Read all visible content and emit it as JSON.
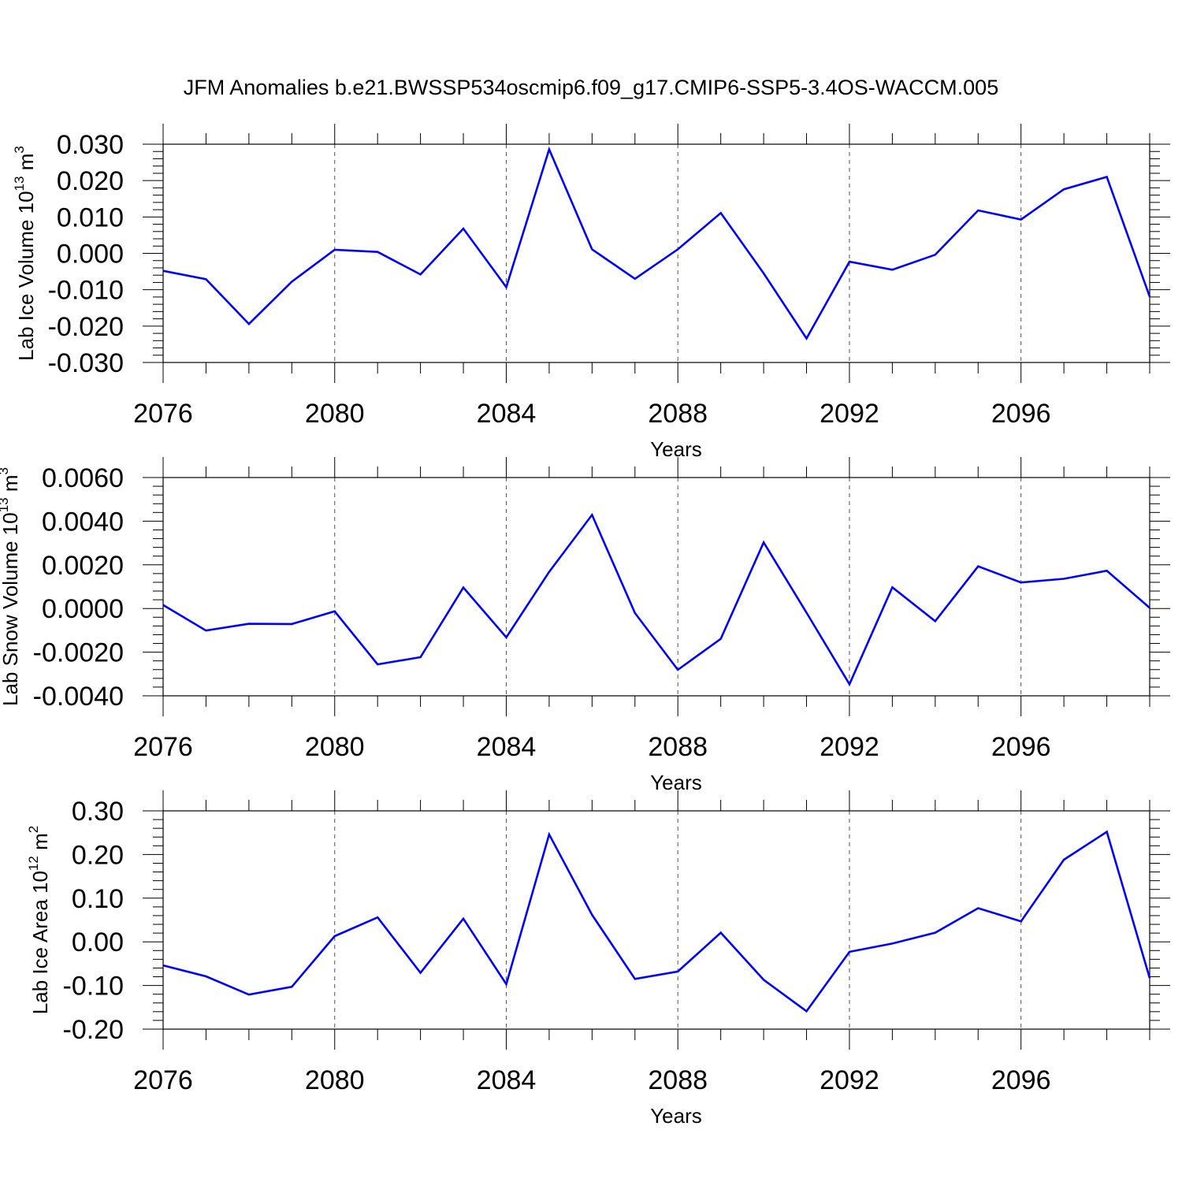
{
  "title": "JFM Anomalies b.e21.BWSSP534oscmip6.f09_g17.CMIP6-SSP5-3.4OS-WACCM.005",
  "colors": {
    "line": "#0000ff",
    "axis": "#000000",
    "grid": "#555555"
  },
  "chart_data": [
    {
      "type": "line",
      "title": "",
      "xlabel": "Years",
      "ylabel": "Lab Ice Volume 10",
      "ylabel_sup": "13",
      "ylabel_unit": " m",
      "ylabel_unit_sup": "3",
      "xlim": [
        2076,
        2099
      ],
      "ylim": [
        -0.03,
        0.03
      ],
      "xticks": [
        2076,
        2080,
        2084,
        2088,
        2092,
        2096
      ],
      "xtick_labels": [
        "2076",
        "2080",
        "2084",
        "2088",
        "2092",
        "2096"
      ],
      "yticks": [
        -0.03,
        -0.02,
        -0.01,
        0.0,
        0.01,
        0.02,
        0.03
      ],
      "ytick_labels": [
        "-0.030",
        "-0.020",
        "-0.010",
        "0.000",
        "0.010",
        "0.020",
        "0.030"
      ],
      "grid": "vertical dashed at major x ticks",
      "series": [
        {
          "x": [
            2076,
            2077,
            2078,
            2079,
            2080,
            2081,
            2082,
            2083,
            2084,
            2085,
            2086,
            2087,
            2088,
            2089,
            2090,
            2091,
            2092,
            2093,
            2094,
            2095,
            2096,
            2097,
            2098,
            2099
          ],
          "values": [
            -0.0048,
            -0.0071,
            -0.0194,
            -0.0078,
            0.001,
            0.0004,
            -0.0058,
            0.0068,
            -0.0093,
            0.0286,
            0.0011,
            -0.007,
            0.0011,
            0.0111,
            -0.0055,
            -0.0234,
            -0.0023,
            -0.0045,
            -0.0004,
            0.0118,
            0.0093,
            0.0176,
            0.021,
            -0.0119
          ]
        }
      ]
    },
    {
      "type": "line",
      "title": "",
      "xlabel": "Years",
      "ylabel": "Lab Snow Volume 10",
      "ylabel_sup": "13",
      "ylabel_unit": " m",
      "ylabel_unit_sup": "3",
      "xlim": [
        2076,
        2099
      ],
      "ylim": [
        -0.004,
        0.006
      ],
      "xticks": [
        2076,
        2080,
        2084,
        2088,
        2092,
        2096
      ],
      "xtick_labels": [
        "2076",
        "2080",
        "2084",
        "2088",
        "2092",
        "2096"
      ],
      "yticks": [
        -0.004,
        -0.002,
        0.0,
        0.002,
        0.004,
        0.006
      ],
      "ytick_labels": [
        "-0.0040",
        "-0.0020",
        "0.0000",
        "0.0020",
        "0.0040",
        "0.0060"
      ],
      "grid": "vertical dashed at major x ticks",
      "series": [
        {
          "x": [
            2076,
            2077,
            2078,
            2079,
            2080,
            2081,
            2082,
            2083,
            2084,
            2085,
            2086,
            2087,
            2088,
            2089,
            2090,
            2091,
            2092,
            2093,
            2094,
            2095,
            2096,
            2097,
            2098,
            2099
          ],
          "values": [
            0.00016,
            -0.00101,
            -0.0007,
            -0.00071,
            -0.00013,
            -0.00256,
            -0.00223,
            0.00096,
            -0.00132,
            0.00168,
            0.00429,
            -0.00021,
            -0.00281,
            -0.00139,
            0.00303,
            -0.00019,
            -0.00347,
            0.00097,
            -0.00058,
            0.00193,
            0.00119,
            0.00136,
            0.00173,
            3e-05
          ]
        }
      ]
    },
    {
      "type": "line",
      "title": "",
      "xlabel": "Years",
      "ylabel": "Lab Ice Area 10",
      "ylabel_sup": "12",
      "ylabel_unit": " m",
      "ylabel_unit_sup": "2",
      "xlim": [
        2076,
        2099
      ],
      "ylim": [
        -0.2,
        0.3
      ],
      "xticks": [
        2076,
        2080,
        2084,
        2088,
        2092,
        2096
      ],
      "xtick_labels": [
        "2076",
        "2080",
        "2084",
        "2088",
        "2092",
        "2096"
      ],
      "yticks": [
        -0.2,
        -0.1,
        0.0,
        0.1,
        0.2,
        0.3
      ],
      "ytick_labels": [
        "-0.20",
        "-0.10",
        "0.00",
        "0.10",
        "0.20",
        "0.30"
      ],
      "grid": "vertical dashed at major x ticks",
      "series": [
        {
          "x": [
            2076,
            2077,
            2078,
            2079,
            2080,
            2081,
            2082,
            2083,
            2084,
            2085,
            2086,
            2087,
            2088,
            2089,
            2090,
            2091,
            2092,
            2093,
            2094,
            2095,
            2096,
            2097,
            2098,
            2099
          ],
          "values": [
            -0.054,
            -0.079,
            -0.121,
            -0.103,
            0.013,
            0.056,
            -0.071,
            0.053,
            -0.097,
            0.246,
            0.062,
            -0.085,
            -0.068,
            0.021,
            -0.087,
            -0.159,
            -0.023,
            -0.004,
            0.021,
            0.077,
            0.047,
            0.188,
            0.252,
            -0.083
          ]
        }
      ]
    }
  ]
}
